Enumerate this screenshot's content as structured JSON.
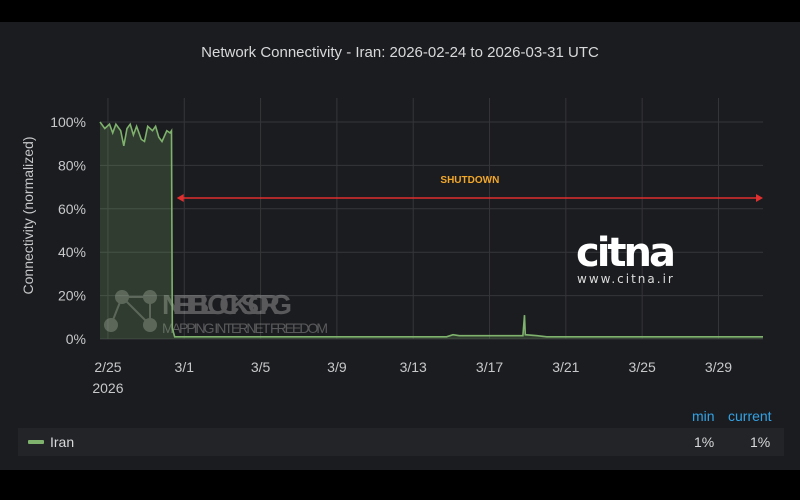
{
  "chart_data": {
    "type": "area",
    "title": "Network Connectivity - Iran: 2026-02-24 to 2026-03-31 UTC",
    "ylabel": "Connectivity (normalized)",
    "xlabel": "",
    "ylim": [
      0,
      100
    ],
    "xlim": [
      "2026-02-24T14:00",
      "2026-03-31T08:00"
    ],
    "y_ticks": [
      "0%",
      "20%",
      "40%",
      "60%",
      "80%",
      "100%"
    ],
    "x_ticks": [
      {
        "date": "2026-02-25",
        "label": "2/25",
        "sub": "2026"
      },
      {
        "date": "2026-03-01",
        "label": "3/1"
      },
      {
        "date": "2026-03-05",
        "label": "3/5"
      },
      {
        "date": "2026-03-09",
        "label": "3/9"
      },
      {
        "date": "2026-03-13",
        "label": "3/13"
      },
      {
        "date": "2026-03-17",
        "label": "3/17"
      },
      {
        "date": "2026-03-21",
        "label": "3/21"
      },
      {
        "date": "2026-03-25",
        "label": "3/25"
      },
      {
        "date": "2026-03-29",
        "label": "3/29"
      }
    ],
    "grid": true,
    "series": [
      {
        "name": "Iran",
        "color": "#7eb26d",
        "points": [
          [
            "2026-02-24T14:00",
            100
          ],
          [
            "2026-02-24T20:00",
            97
          ],
          [
            "2026-02-25T02:00",
            99
          ],
          [
            "2026-02-25T06:00",
            95
          ],
          [
            "2026-02-25T10:00",
            99
          ],
          [
            "2026-02-25T16:00",
            96
          ],
          [
            "2026-02-25T20:00",
            89
          ],
          [
            "2026-02-26T00:00",
            97
          ],
          [
            "2026-02-26T04:00",
            99
          ],
          [
            "2026-02-26T08:00",
            94
          ],
          [
            "2026-02-26T12:00",
            98
          ],
          [
            "2026-02-26T18:00",
            92
          ],
          [
            "2026-02-26T22:00",
            91
          ],
          [
            "2026-02-27T02:00",
            98
          ],
          [
            "2026-02-27T08:00",
            96
          ],
          [
            "2026-02-27T12:00",
            98
          ],
          [
            "2026-02-27T16:00",
            93
          ],
          [
            "2026-02-27T20:00",
            91
          ],
          [
            "2026-02-28T02:00",
            96
          ],
          [
            "2026-02-28T06:00",
            95
          ],
          [
            "2026-02-28T08:00",
            96
          ],
          [
            "2026-02-28T09:00",
            5
          ],
          [
            "2026-02-28T12:00",
            1
          ],
          [
            "2026-03-05T00:00",
            1
          ],
          [
            "2026-03-14T18:00",
            1
          ],
          [
            "2026-03-15T02:00",
            2
          ],
          [
            "2026-03-15T10:00",
            1.5
          ],
          [
            "2026-03-18T18:00",
            1.5
          ],
          [
            "2026-03-18T20:00",
            11
          ],
          [
            "2026-03-18T21:00",
            2
          ],
          [
            "2026-03-19T12:00",
            1.5
          ],
          [
            "2026-03-20T00:00",
            1
          ],
          [
            "2026-03-31T08:00",
            1
          ]
        ]
      }
    ],
    "annotation": {
      "label": "SHUTDOWN",
      "from": "2026-02-28T12:00",
      "to": "2026-03-31T08:00",
      "y": 65,
      "color": "#e02f2f",
      "label_color": "#f2a72b"
    },
    "legend": {
      "placement": "bottom",
      "headers": [
        "min",
        "current"
      ],
      "rows": [
        {
          "name": "Iran",
          "min": "1%",
          "current": "1%"
        }
      ]
    },
    "watermarks": {
      "netblocks": "NETBLOCKS.ORG",
      "netblocks_tagline": "MAPPING INTERNET FREEDOM",
      "citna": "citna",
      "citna_url": "www.citna.ir"
    }
  }
}
